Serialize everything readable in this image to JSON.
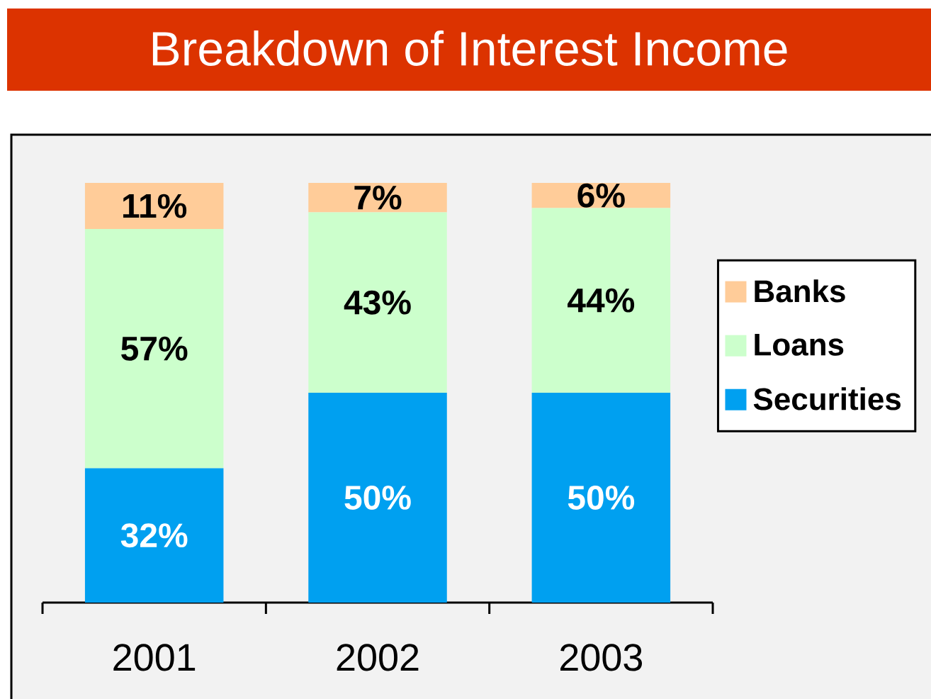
{
  "chart_data": {
    "type": "bar",
    "title": "Breakdown of Interest Income",
    "categories": [
      "2001",
      "2002",
      "2003"
    ],
    "stacked": true,
    "legend": "right",
    "series": [
      {
        "name": "Securities",
        "color": "#00a0f0",
        "values": [
          32,
          50,
          50
        ],
        "value_labels": [
          "32%",
          "50%",
          "50%"
        ]
      },
      {
        "name": "Loans",
        "color": "#ccffcc",
        "values": [
          57,
          43,
          44
        ],
        "value_labels": [
          "57%",
          "43%",
          "44%"
        ]
      },
      {
        "name": "Banks",
        "color": "#ffcc99",
        "values": [
          11,
          7,
          6
        ],
        "value_labels": [
          "11%",
          "7%",
          "6%"
        ]
      }
    ]
  }
}
